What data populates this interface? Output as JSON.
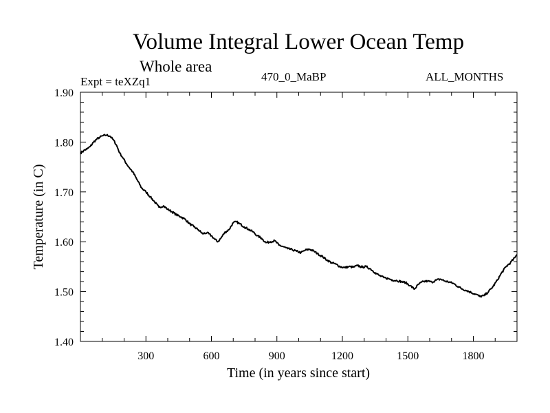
{
  "chart_data": {
    "type": "line",
    "title": "Volume Integral Lower Ocean Temp",
    "subtitle": "Whole area",
    "annotations": {
      "experiment": "Expt = teXZq1",
      "period": "470_0_MaBP",
      "months": "ALL_MONTHS"
    },
    "xlabel": "Time (in years since start)",
    "ylabel": "Temperature (in C)",
    "xlim": [
      0,
      2000
    ],
    "ylim": [
      1.4,
      1.9
    ],
    "xticks": [
      300,
      600,
      900,
      1200,
      1500,
      1800
    ],
    "xtick_labels": [
      "300",
      "600",
      "900",
      "1200",
      "1500",
      "1800"
    ],
    "yticks": [
      1.4,
      1.5,
      1.6,
      1.7,
      1.8,
      1.9
    ],
    "ytick_labels": [
      "1.40",
      "1.50",
      "1.60",
      "1.70",
      "1.80",
      "1.90"
    ],
    "x_minor_step": 100,
    "y_minor_step": 0.02,
    "grid": false,
    "series": [
      {
        "name": "Volume Integral Lower Ocean Temp",
        "color": "#000000",
        "x": [
          0,
          15,
          30,
          45,
          60,
          75,
          90,
          105,
          120,
          135,
          150,
          165,
          180,
          195,
          210,
          225,
          240,
          260,
          280,
          300,
          320,
          340,
          360,
          380,
          400,
          420,
          440,
          460,
          480,
          500,
          520,
          540,
          560,
          580,
          600,
          615,
          630,
          645,
          660,
          680,
          700,
          715,
          730,
          750,
          770,
          790,
          810,
          830,
          850,
          870,
          890,
          910,
          930,
          950,
          970,
          990,
          1010,
          1030,
          1050,
          1070,
          1090,
          1110,
          1130,
          1150,
          1170,
          1190,
          1210,
          1230,
          1250,
          1270,
          1290,
          1310,
          1330,
          1350,
          1370,
          1390,
          1410,
          1430,
          1450,
          1470,
          1490,
          1510,
          1530,
          1550,
          1570,
          1590,
          1610,
          1630,
          1650,
          1670,
          1690,
          1710,
          1730,
          1750,
          1770,
          1790,
          1810,
          1830,
          1850,
          1870,
          1890,
          1910,
          1930,
          1950,
          1970,
          1990,
          2000
        ],
        "y": [
          1.778,
          1.783,
          1.786,
          1.791,
          1.8,
          1.806,
          1.81,
          1.813,
          1.814,
          1.812,
          1.805,
          1.794,
          1.778,
          1.768,
          1.757,
          1.748,
          1.74,
          1.724,
          1.708,
          1.7,
          1.69,
          1.68,
          1.669,
          1.672,
          1.665,
          1.66,
          1.654,
          1.65,
          1.645,
          1.636,
          1.63,
          1.624,
          1.616,
          1.618,
          1.612,
          1.605,
          1.6,
          1.608,
          1.618,
          1.624,
          1.638,
          1.64,
          1.636,
          1.63,
          1.625,
          1.62,
          1.612,
          1.607,
          1.598,
          1.6,
          1.602,
          1.593,
          1.59,
          1.586,
          1.584,
          1.581,
          1.578,
          1.583,
          1.585,
          1.581,
          1.575,
          1.57,
          1.563,
          1.558,
          1.555,
          1.55,
          1.548,
          1.55,
          1.549,
          1.552,
          1.549,
          1.55,
          1.545,
          1.538,
          1.532,
          1.528,
          1.526,
          1.523,
          1.522,
          1.52,
          1.518,
          1.512,
          1.505,
          1.515,
          1.52,
          1.521,
          1.519,
          1.523,
          1.525,
          1.521,
          1.519,
          1.516,
          1.51,
          1.505,
          1.502,
          1.498,
          1.495,
          1.49,
          1.492,
          1.5,
          1.51,
          1.523,
          1.538,
          1.55,
          1.558,
          1.568,
          1.574
        ]
      }
    ]
  }
}
